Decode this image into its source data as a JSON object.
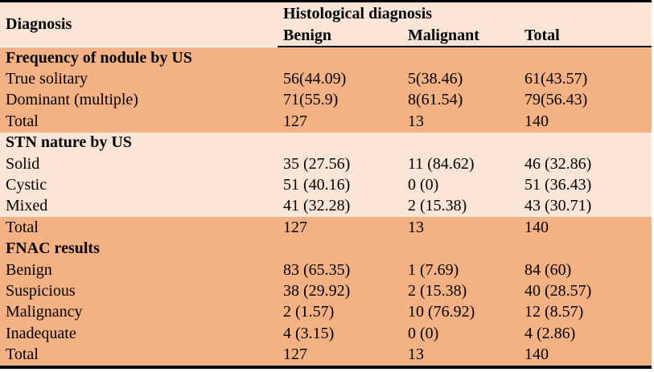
{
  "colors": {
    "shade_light": "#FBE5D6",
    "shade_dark": "#F4B183",
    "border": "#000000",
    "text": "#000000"
  },
  "header": {
    "diagnosis": "Diagnosis",
    "group": "Histological diagnosis",
    "benign": "Benign",
    "malignant": "Malignant",
    "total": "Total"
  },
  "chart_data": {
    "type": "table",
    "columns": [
      "Diagnosis",
      "Benign",
      "Malignant",
      "Total"
    ],
    "column_group": {
      "label": "Histological diagnosis",
      "spans": [
        "Benign",
        "Malignant"
      ]
    },
    "sections": [
      {
        "title": "Frequency of nodule by US",
        "title_shade": "dark",
        "rows": [
          {
            "label": "True solitary",
            "benign": "56(44.09)",
            "malignant": "5(38.46)",
            "total": "61(43.57)",
            "shade": "dark"
          },
          {
            "label": "Dominant (multiple)",
            "benign": "71(55.9)",
            "malignant": "8(61.54)",
            "total": "79(56.43)",
            "shade": "dark"
          },
          {
            "label": "Total",
            "benign": "127",
            "malignant": "13",
            "total": "140",
            "shade": "dark"
          }
        ]
      },
      {
        "title": "STN nature by US",
        "title_shade": "light",
        "rows": [
          {
            "label": "Solid",
            "benign": "35 (27.56)",
            "malignant": "11 (84.62)",
            "total": "46 (32.86)",
            "shade": "light"
          },
          {
            "label": "Cystic",
            "benign": "51 (40.16)",
            "malignant": "0 (0)",
            "total": "51 (36.43)",
            "shade": "light"
          },
          {
            "label": "Mixed",
            "benign": "41 (32.28)",
            "malignant": "2 (15.38)",
            "total": "43 (30.71)",
            "shade": "light"
          },
          {
            "label": "Total",
            "benign": "127",
            "malignant": "13",
            "total": "140",
            "shade": "dark"
          }
        ]
      },
      {
        "title": "FNAC results",
        "title_shade": "dark",
        "rows": [
          {
            "label": "Benign",
            "benign": "83 (65.35)",
            "malignant": "1 (7.69)",
            "total": "84 (60)",
            "shade": "dark"
          },
          {
            "label": "Suspicious",
            "benign": "38 (29.92)",
            "malignant": "2 (15.38)",
            "total": "40 (28.57)",
            "shade": "dark"
          },
          {
            "label": "Malignancy",
            "benign": "2 (1.57)",
            "malignant": "10 (76.92)",
            "total": "12 (8.57)",
            "shade": "dark"
          },
          {
            "label": "Inadequate",
            "benign": "4 (3.15)",
            "malignant": "0 (0)",
            "total": "4 (2.86)",
            "shade": "dark"
          },
          {
            "label": "Total",
            "benign": "127",
            "malignant": "13",
            "total": "140",
            "shade": "dark"
          }
        ]
      }
    ]
  }
}
